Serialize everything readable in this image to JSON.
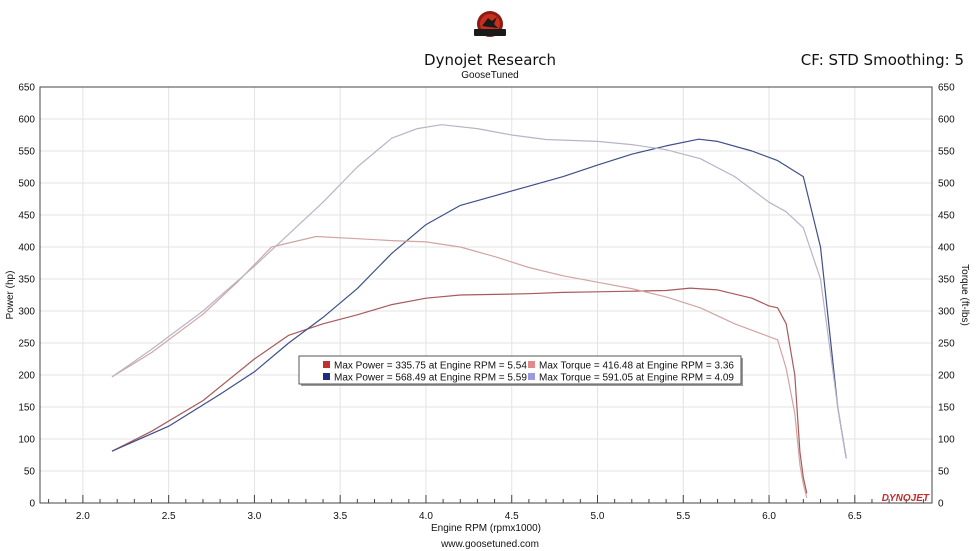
{
  "header": {
    "title": "Dynojet Research",
    "subtitle": "GooseTuned",
    "settings": "CF: STD Smoothing: 5"
  },
  "footer": {
    "website": "www.goosetuned.com"
  },
  "brand": {
    "logo_text": "GOOSE TUNED",
    "watermark": "DYNOJET"
  },
  "colors": {
    "power_a": "#c0302f",
    "power_b": "#1c2d80",
    "torque_a": "#e08a8a",
    "torque_b": "#9a9ae0",
    "curve_power_a": "#a85a5a",
    "curve_power_b": "#3e4f8a",
    "curve_torque_a": "#d2a4a4",
    "curve_torque_b": "#b8b4c8"
  },
  "chart_data": {
    "type": "line",
    "title": "Dynojet Research",
    "subtitle": "GooseTuned",
    "xlabel": "Engine RPM (rpmx1000)",
    "ylabel_left": "Power (hp)",
    "ylabel_right": "Torque (ft-lbs)",
    "xlim": [
      1.75,
      6.95
    ],
    "ylim": [
      0,
      650
    ],
    "xticks": [
      "2.0",
      "2.5",
      "3.0",
      "3.5",
      "4.0",
      "4.5",
      "5.0",
      "5.5",
      "6.0",
      "6.5"
    ],
    "yticks": [
      "0",
      "50",
      "100",
      "150",
      "200",
      "250",
      "300",
      "350",
      "400",
      "450",
      "500",
      "550",
      "600",
      "650"
    ],
    "grid": true,
    "legend_position": "center",
    "legend": [
      "Max Power = 335.75 at Engine RPM = 5.54",
      "Max Torque = 416.48 at Engine RPM = 3.36",
      "Max Power = 568.49 at Engine RPM = 5.59",
      "Max Torque = 591.05 at Engine RPM = 4.09"
    ],
    "series": [
      {
        "name": "Max Power = 335.75 at Engine RPM = 5.54",
        "axis": "left",
        "x": [
          2.17,
          2.4,
          2.7,
          3.0,
          3.2,
          3.4,
          3.6,
          3.8,
          4.0,
          4.2,
          4.4,
          4.6,
          4.8,
          5.0,
          5.2,
          5.4,
          5.54,
          5.7,
          5.9,
          6.0,
          6.05,
          6.1,
          6.15,
          6.18,
          6.2,
          6.22
        ],
        "y": [
          81,
          112,
          160,
          225,
          262,
          280,
          294,
          310,
          320,
          325,
          326,
          327,
          329,
          330,
          331,
          332,
          335.75,
          333,
          320,
          308,
          305,
          280,
          200,
          80,
          40,
          15
        ]
      },
      {
        "name": "Max Power = 568.49 at Engine RPM = 5.59",
        "axis": "left",
        "x": [
          2.17,
          2.5,
          2.8,
          3.0,
          3.2,
          3.4,
          3.6,
          3.8,
          4.0,
          4.2,
          4.4,
          4.6,
          4.8,
          5.0,
          5.2,
          5.4,
          5.59,
          5.7,
          5.9,
          6.05,
          6.2,
          6.3,
          6.4,
          6.45
        ],
        "y": [
          81,
          120,
          170,
          205,
          250,
          290,
          335,
          390,
          435,
          465,
          480,
          495,
          510,
          528,
          545,
          558,
          568.49,
          565,
          550,
          535,
          510,
          400,
          150,
          70
        ]
      },
      {
        "name": "Max Torque = 416.48 at Engine RPM = 3.36",
        "axis": "right",
        "x": [
          2.17,
          2.4,
          2.7,
          2.9,
          3.1,
          3.36,
          3.6,
          3.8,
          4.0,
          4.2,
          4.4,
          4.6,
          4.8,
          5.0,
          5.2,
          5.4,
          5.6,
          5.8,
          5.95,
          6.05,
          6.1,
          6.15,
          6.18,
          6.2,
          6.22
        ],
        "y": [
          197,
          235,
          295,
          345,
          400,
          416.48,
          413,
          410,
          408,
          400,
          385,
          368,
          355,
          345,
          335,
          322,
          305,
          280,
          265,
          255,
          210,
          140,
          60,
          30,
          8
        ]
      },
      {
        "name": "Max Torque = 591.05 at Engine RPM = 4.09",
        "axis": "right",
        "x": [
          2.17,
          2.4,
          2.7,
          3.0,
          3.2,
          3.4,
          3.6,
          3.8,
          3.95,
          4.09,
          4.3,
          4.5,
          4.7,
          5.0,
          5.2,
          5.4,
          5.6,
          5.8,
          6.0,
          6.1,
          6.2,
          6.3,
          6.4,
          6.45
        ],
        "y": [
          197,
          240,
          300,
          370,
          420,
          470,
          525,
          570,
          585,
          591.05,
          585,
          575,
          568,
          565,
          560,
          552,
          538,
          510,
          470,
          455,
          430,
          350,
          150,
          70
        ]
      }
    ]
  }
}
